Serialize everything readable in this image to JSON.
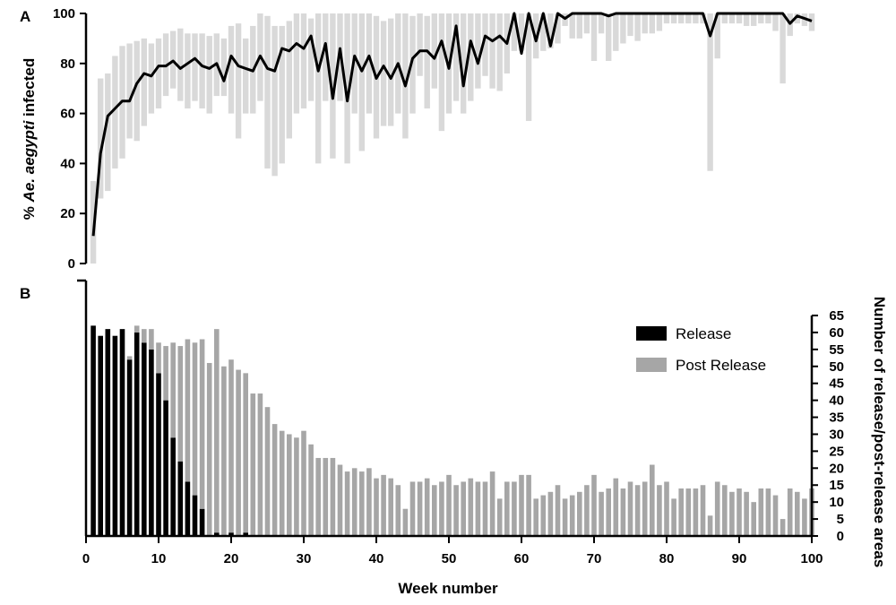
{
  "figure": {
    "panel_a_letter": "A",
    "panel_b_letter": "B"
  },
  "chart_data": [
    {
      "type": "line",
      "panel": "A",
      "ylabel_prefix": "% ",
      "ylabel_italic": "Ae. aegypti",
      "ylabel_suffix": " infected",
      "xlim": [
        0,
        100
      ],
      "ylim": [
        0,
        100
      ],
      "yticks": [
        0,
        20,
        40,
        60,
        80,
        100
      ],
      "grid": false,
      "colors": {
        "line": "#000000",
        "band": "#d9d9d9"
      },
      "series": [
        {
          "x": [
            1,
            2,
            3,
            4,
            5,
            6,
            7,
            8,
            9,
            10,
            11,
            12,
            13,
            14,
            15,
            16,
            17,
            18,
            19,
            20,
            21,
            22,
            23,
            24,
            25,
            26,
            27,
            28,
            29,
            30,
            31,
            32,
            33,
            34,
            35,
            36,
            37,
            38,
            39,
            40,
            41,
            42,
            43,
            44,
            45,
            46,
            47,
            48,
            49,
            50,
            51,
            52,
            53,
            54,
            55,
            56,
            57,
            58,
            59,
            60,
            61,
            62,
            63,
            64,
            65,
            66,
            67,
            68,
            69,
            70,
            71,
            72,
            73,
            74,
            75,
            76,
            77,
            78,
            79,
            80,
            81,
            82,
            83,
            84,
            85,
            86,
            87,
            88,
            89,
            90,
            91,
            92,
            93,
            94,
            95,
            96,
            97,
            98,
            99,
            100
          ],
          "y": [
            11,
            44,
            59,
            62,
            65,
            65,
            72,
            76,
            75,
            79,
            79,
            81,
            78,
            80,
            82,
            79,
            78,
            80,
            73,
            83,
            79,
            78,
            77,
            83,
            78,
            77,
            86,
            85,
            88,
            86,
            91,
            77,
            88,
            66,
            86,
            65,
            83,
            77,
            83,
            74,
            79,
            74,
            80,
            71,
            82,
            85,
            85,
            82,
            89,
            78,
            95,
            71,
            89,
            80,
            91,
            89,
            91,
            88,
            100,
            84,
            100,
            89,
            100,
            87,
            100,
            98,
            100,
            100,
            100,
            100,
            100,
            99,
            100,
            100,
            100,
            100,
            100,
            100,
            100,
            100,
            100,
            100,
            100,
            100,
            100,
            91,
            100,
            100,
            100,
            100,
            100,
            100,
            100,
            100,
            100,
            100,
            96,
            99,
            98,
            97
          ],
          "low": [
            0,
            26,
            29,
            38,
            42,
            50,
            49,
            55,
            60,
            62,
            67,
            70,
            65,
            62,
            65,
            62,
            60,
            67,
            67,
            60,
            50,
            60,
            60,
            65,
            38,
            35,
            40,
            50,
            60,
            62,
            65,
            40,
            65,
            42,
            65,
            40,
            60,
            45,
            60,
            50,
            55,
            55,
            60,
            50,
            60,
            75,
            62,
            70,
            53,
            60,
            65,
            60,
            65,
            70,
            75,
            70,
            69,
            76,
            85,
            85,
            57,
            82,
            85,
            86,
            88,
            95,
            90,
            90,
            92,
            81,
            92,
            81,
            85,
            88,
            91,
            89,
            92,
            92,
            93,
            96,
            96,
            96,
            96,
            96,
            96,
            37,
            82,
            96,
            96,
            96,
            95,
            95,
            96,
            96,
            93,
            72,
            91,
            96,
            95,
            93
          ],
          "high": [
            33,
            74,
            76,
            83,
            87,
            88,
            89,
            90,
            88,
            90,
            92,
            93,
            94,
            92,
            92,
            92,
            91,
            92,
            90,
            95,
            96,
            90,
            95,
            100,
            99,
            95,
            95,
            97,
            100,
            100,
            98,
            100,
            100,
            100,
            100,
            100,
            100,
            100,
            100,
            99,
            97,
            98,
            100,
            100,
            99,
            100,
            99,
            100,
            100,
            100,
            100,
            100,
            100,
            100,
            100,
            100,
            100,
            100,
            100,
            100,
            100,
            100,
            100,
            100,
            100,
            100,
            100,
            100,
            100,
            100,
            100,
            100,
            100,
            100,
            100,
            100,
            100,
            100,
            100,
            100,
            100,
            100,
            100,
            100,
            100,
            100,
            100,
            100,
            100,
            100,
            100,
            100,
            100,
            100,
            100,
            100,
            100,
            100,
            100,
            100
          ]
        }
      ]
    },
    {
      "type": "bar",
      "panel": "B",
      "stacked": true,
      "xlabel": "Week number",
      "ylabel": "Number of release/post-release areas",
      "y_axis_side": "right",
      "xlim": [
        0,
        100
      ],
      "xticks": [
        0,
        10,
        20,
        30,
        40,
        50,
        60,
        70,
        80,
        90,
        100
      ],
      "ylim": [
        0,
        65
      ],
      "yticks": [
        0,
        5,
        10,
        15,
        20,
        25,
        30,
        35,
        40,
        45,
        50,
        55,
        60,
        65
      ],
      "legend_position": "top-right",
      "grid": false,
      "x": [
        1,
        2,
        3,
        4,
        5,
        6,
        7,
        8,
        9,
        10,
        11,
        12,
        13,
        14,
        15,
        16,
        17,
        18,
        19,
        20,
        21,
        22,
        23,
        24,
        25,
        26,
        27,
        28,
        29,
        30,
        31,
        32,
        33,
        34,
        35,
        36,
        37,
        38,
        39,
        40,
        41,
        42,
        43,
        44,
        45,
        46,
        47,
        48,
        49,
        50,
        51,
        52,
        53,
        54,
        55,
        56,
        57,
        58,
        59,
        60,
        61,
        62,
        63,
        64,
        65,
        66,
        67,
        68,
        69,
        70,
        71,
        72,
        73,
        74,
        75,
        76,
        77,
        78,
        79,
        80,
        81,
        82,
        83,
        84,
        85,
        86,
        87,
        88,
        89,
        90,
        91,
        92,
        93,
        94,
        95,
        96,
        97,
        98,
        99,
        100
      ],
      "series": [
        {
          "name": "Release",
          "color": "#000000",
          "values": [
            62,
            59,
            61,
            59,
            61,
            52,
            60,
            57,
            55,
            48,
            40,
            29,
            22,
            16,
            12,
            8,
            0,
            1,
            0,
            1,
            0,
            1,
            0,
            0,
            0,
            0,
            0,
            0,
            0,
            0,
            0,
            0,
            0,
            0,
            0,
            0,
            0,
            0,
            0,
            0,
            0,
            0,
            0,
            0,
            0,
            0,
            0,
            0,
            0,
            0,
            0,
            0,
            0,
            0,
            0,
            0,
            0,
            0,
            0,
            0,
            0,
            0,
            0,
            0,
            0,
            0,
            0,
            0,
            0,
            0,
            0,
            0,
            0,
            0,
            0,
            0,
            0,
            0,
            0,
            0,
            0,
            0,
            0,
            0,
            0,
            0,
            0,
            0,
            0,
            0,
            0,
            0,
            0,
            0,
            0,
            0,
            0,
            0,
            0,
            0
          ]
        },
        {
          "name": "Post Release",
          "color": "#a6a6a6",
          "values": [
            0,
            0,
            0,
            0,
            0,
            1,
            2,
            4,
            6,
            9,
            16,
            28,
            34,
            42,
            45,
            50,
            51,
            60,
            50,
            51,
            49,
            47,
            42,
            42,
            38,
            33,
            31,
            30,
            29,
            31,
            27,
            23,
            23,
            23,
            21,
            19,
            20,
            19,
            20,
            17,
            18,
            17,
            15,
            8,
            16,
            16,
            17,
            15,
            16,
            18,
            15,
            16,
            17,
            16,
            16,
            19,
            11,
            16,
            16,
            18,
            18,
            11,
            12,
            13,
            15,
            11,
            12,
            13,
            15,
            18,
            13,
            14,
            17,
            14,
            16,
            15,
            16,
            21,
            15,
            16,
            11,
            14,
            14,
            14,
            15,
            6,
            16,
            15,
            13,
            14,
            13,
            10,
            14,
            14,
            12,
            5,
            14,
            13,
            11,
            14
          ]
        }
      ]
    }
  ]
}
